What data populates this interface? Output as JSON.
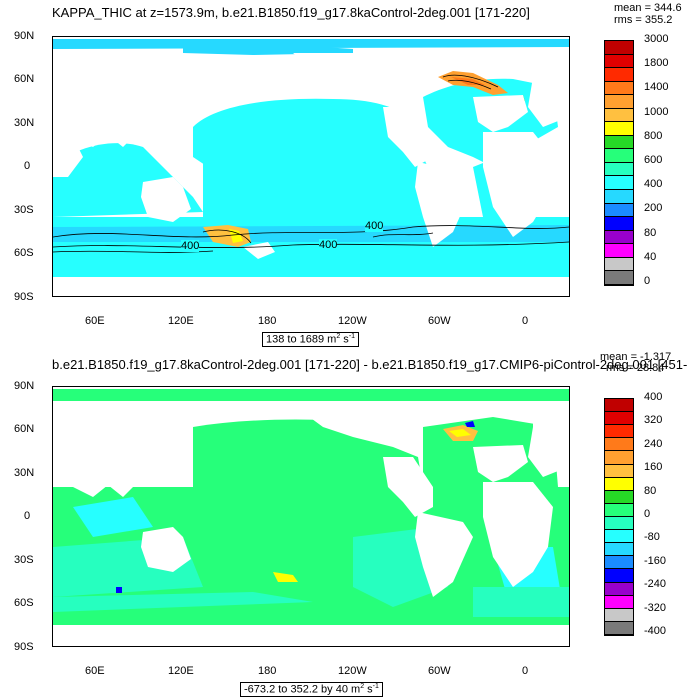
{
  "panel1": {
    "title": "KAPPA_THIC at z=1573.9m, b.e21.B1850.f19_g17.8kaControl-2deg.001 [171-220]",
    "mean": "mean = 344.6",
    "rms": "rms = 355.2",
    "range_text": "138 to 1689 m",
    "range_unit_exp": "2",
    "range_unit_tail": " s",
    "range_unit_exp2": "-1",
    "contour_labels": [
      "400",
      "400",
      "400"
    ],
    "colorbar": {
      "labels": [
        "3000",
        "1800",
        "1400",
        "1000",
        "800",
        "600",
        "400",
        "200",
        "80",
        "40",
        "0"
      ],
      "colors": [
        "#c00000",
        "#e00000",
        "#ff2a00",
        "#ff7a1a",
        "#ffa030",
        "#ffc040",
        "#ffff00",
        "#26d926",
        "#26ff7a",
        "#26ffbf",
        "#26ffff",
        "#26d9ff",
        "#1a8cff",
        "#0000ff",
        "#9900cc",
        "#ff00ff",
        "#c8c8c8",
        "#7a7a7a"
      ]
    }
  },
  "panel2": {
    "title": "b.e21.B1850.f19_g17.8kaControl-2deg.001 [171-220] - b.e21.B1850.f19_g17.CMIP6-piControl-2deg.001 [451-",
    "mean": "mean = -1.317",
    "rms": "rms = 28.84",
    "range_text": "-673.2 to 352.2 by 40 m",
    "range_unit_exp": "2",
    "range_unit_tail": " s",
    "range_unit_exp2": "-1",
    "colorbar": {
      "labels": [
        "400",
        "320",
        "240",
        "160",
        "80",
        "0",
        "-80",
        "-160",
        "-240",
        "-320",
        "-400"
      ],
      "colors": [
        "#c00000",
        "#e00000",
        "#ff2a00",
        "#ff7a1a",
        "#ffa030",
        "#ffc040",
        "#ffff00",
        "#26d926",
        "#26ff7a",
        "#26ffbf",
        "#26ffff",
        "#26d9ff",
        "#1a8cff",
        "#0000ff",
        "#9900cc",
        "#ff00ff",
        "#c8c8c8",
        "#7a7a7a"
      ]
    }
  },
  "axes": {
    "lat_labels": [
      "90N",
      "60N",
      "30N",
      "0",
      "30S",
      "60S",
      "90S"
    ],
    "lon_labels": [
      "60E",
      "120E",
      "180",
      "120W",
      "60W",
      "0"
    ]
  }
}
